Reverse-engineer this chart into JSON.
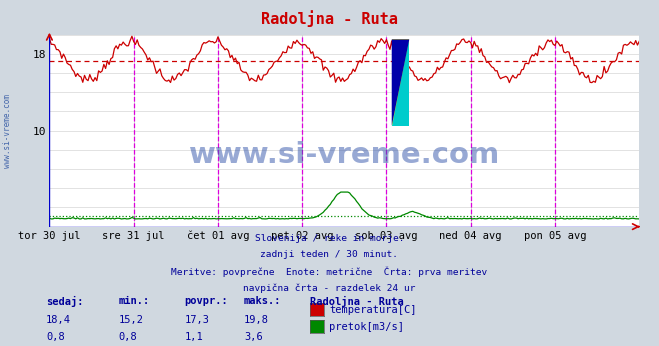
{
  "title": "Radoljna - Ruta",
  "title_color": "#cc0000",
  "bg_color": "#d0d8e0",
  "plot_bg_color": "#ffffff",
  "grid_color": "#cccccc",
  "grid_color_minor": "#e8e8e8",
  "xlim": [
    0,
    336
  ],
  "ylim": [
    0,
    20
  ],
  "temp_color": "#cc0000",
  "flow_color": "#008800",
  "vline_color": "#dd00dd",
  "avg_temp": 17.3,
  "avg_flow": 1.1,
  "yticks": [
    10,
    18
  ],
  "x_day_labels": [
    "tor 30 jul",
    "sre 31 jul",
    "čet 01 avg",
    "pet 02 avg",
    "sob 03 avg",
    "ned 04 avg",
    "pon 05 avg"
  ],
  "x_day_positions": [
    0,
    48,
    96,
    144,
    192,
    240,
    288
  ],
  "vline_positions": [
    48,
    96,
    144,
    192,
    240,
    288
  ],
  "subtitle_lines": [
    "Slovenija / reke in morje.",
    "zadnji teden / 30 minut.",
    "Meritve: povprečne  Enote: metrične  Črta: prva meritev",
    "navpična črta - razdelek 24 ur"
  ],
  "subtitle_color": "#000099",
  "legend_title": "Radoljna - Ruta",
  "legend_title_color": "#000099",
  "legend_entries": [
    {
      "label": "temperatura[C]",
      "color": "#cc0000"
    },
    {
      "label": "pretok[m3/s]",
      "color": "#008800"
    }
  ],
  "stats_headers": [
    "sedaj:",
    "min.:",
    "povpr.:",
    "maks.:"
  ],
  "temp_vals": [
    18.4,
    15.2,
    17.3,
    19.8
  ],
  "flow_vals": [
    0.8,
    0.8,
    1.1,
    3.6
  ],
  "watermark": "www.si-vreme.com",
  "watermark_color": "#3355aa",
  "sidebar_text": "www.si-vreme.com",
  "sidebar_color": "#4466aa",
  "axis_color": "#0000cc"
}
